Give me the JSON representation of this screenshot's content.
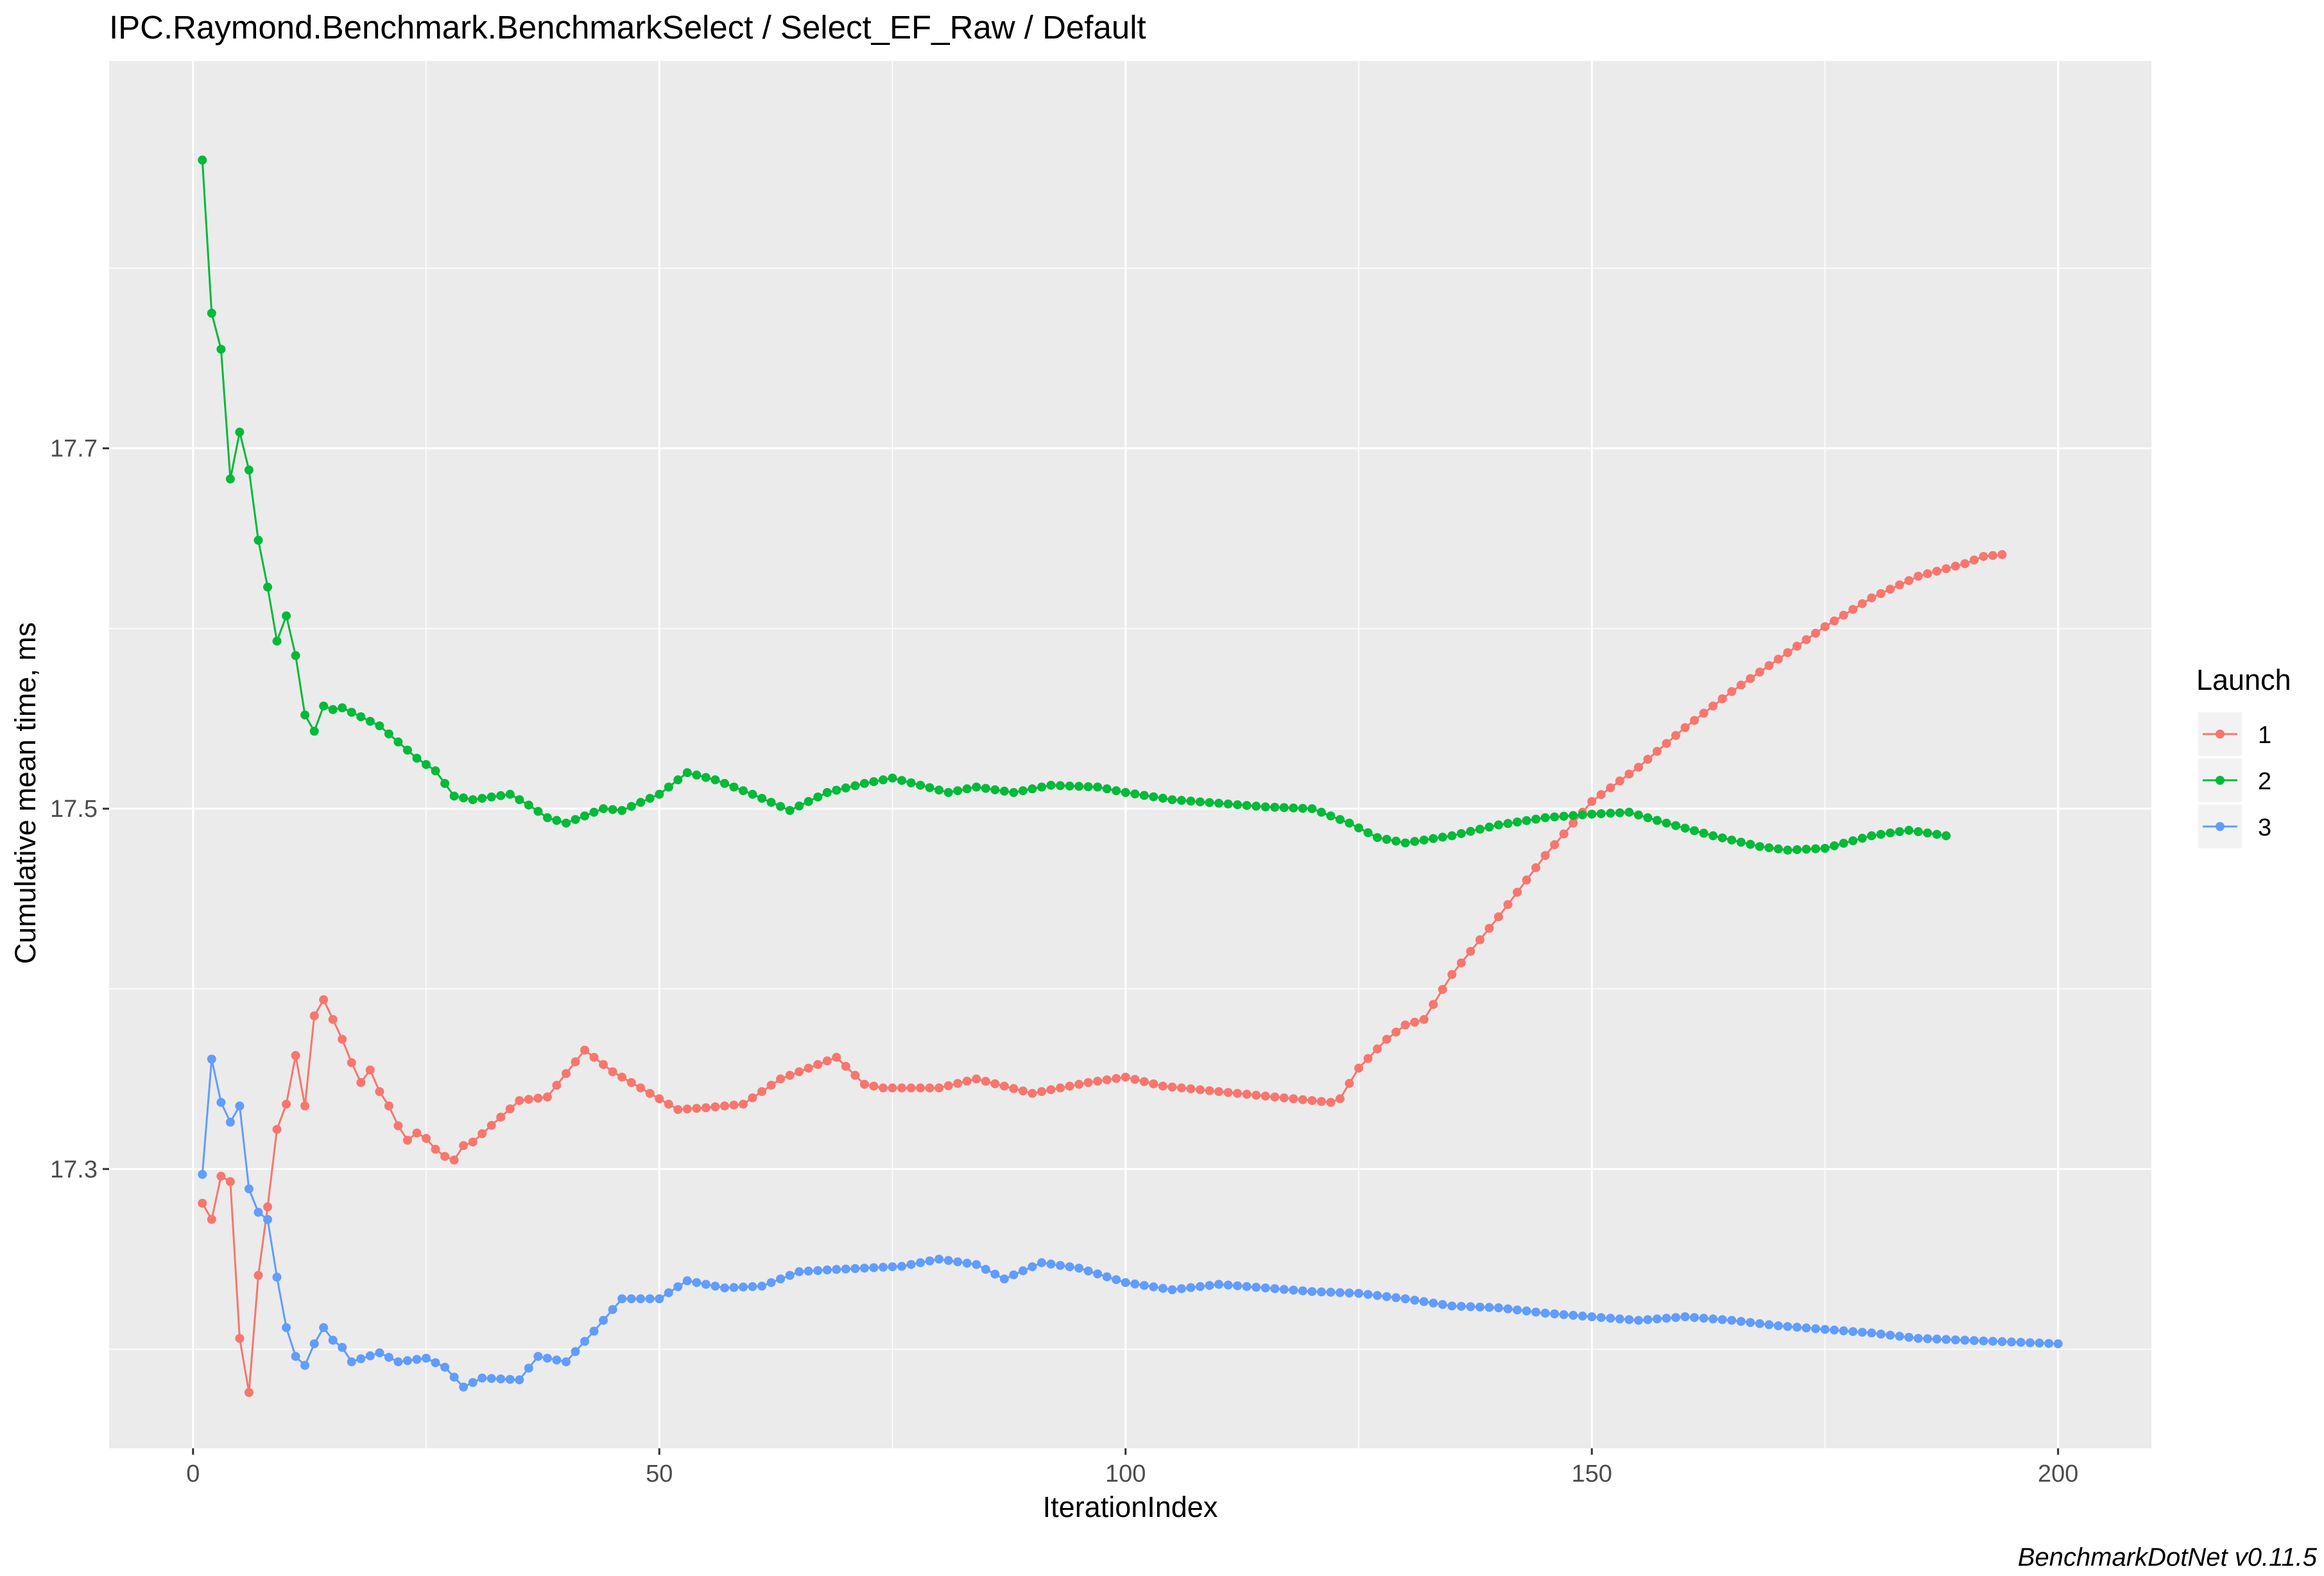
{
  "chart_data": {
    "type": "line",
    "title": "IPC.Raymond.Benchmark.BenchmarkSelect / Select_EF_Raw / Default",
    "xlabel": "IterationIndex",
    "ylabel": "Cumulative mean time, ms",
    "caption": "BenchmarkDotNet v0.11.5",
    "xlim": [
      -9,
      210
    ],
    "ylim": [
      17.145,
      17.915
    ],
    "x_ticks": [
      0,
      50,
      100,
      150,
      200
    ],
    "x_tick_labels": [
      "0",
      "50",
      "100",
      "150",
      "200"
    ],
    "y_ticks": [
      17.3,
      17.5,
      17.7
    ],
    "y_tick_labels": [
      "17.3",
      "17.5",
      "17.7"
    ],
    "grid": true,
    "legend": {
      "title": "Launch",
      "placement": "right"
    },
    "series": [
      {
        "name": "1",
        "color": "#F8766D",
        "keypoints": [
          [
            1,
            17.281
          ],
          [
            2,
            17.272
          ],
          [
            3,
            17.296
          ],
          [
            4,
            17.293
          ],
          [
            5,
            17.206
          ],
          [
            6,
            17.176
          ],
          [
            7,
            17.241
          ],
          [
            8,
            17.279
          ],
          [
            9,
            17.322
          ],
          [
            10,
            17.336
          ],
          [
            11,
            17.363
          ],
          [
            12,
            17.335
          ],
          [
            13,
            17.385
          ],
          [
            14,
            17.394
          ],
          [
            15,
            17.383
          ],
          [
            16,
            17.372
          ],
          [
            17,
            17.359
          ],
          [
            18,
            17.348
          ],
          [
            19,
            17.355
          ],
          [
            20,
            17.343
          ],
          [
            21,
            17.335
          ],
          [
            22,
            17.324
          ],
          [
            23,
            17.316
          ],
          [
            24,
            17.32
          ],
          [
            25,
            17.317
          ],
          [
            26,
            17.311
          ],
          [
            27,
            17.307
          ],
          [
            28,
            17.305
          ],
          [
            29,
            17.313
          ],
          [
            30,
            17.315
          ],
          [
            35,
            17.338
          ],
          [
            38,
            17.34
          ],
          [
            42,
            17.366
          ],
          [
            45,
            17.354
          ],
          [
            48,
            17.345
          ],
          [
            52,
            17.333
          ],
          [
            55,
            17.334
          ],
          [
            59,
            17.336
          ],
          [
            63,
            17.35
          ],
          [
            67,
            17.358
          ],
          [
            69,
            17.362
          ],
          [
            72,
            17.347
          ],
          [
            74,
            17.345
          ],
          [
            80,
            17.345
          ],
          [
            84,
            17.35
          ],
          [
            90,
            17.342
          ],
          [
            96,
            17.348
          ],
          [
            100,
            17.351
          ],
          [
            104,
            17.346
          ],
          [
            110,
            17.343
          ],
          [
            114,
            17.341
          ],
          [
            118,
            17.339
          ],
          [
            122,
            17.337
          ],
          [
            123,
            17.339
          ],
          [
            125,
            17.356
          ],
          [
            128,
            17.372
          ],
          [
            130,
            17.38
          ],
          [
            132,
            17.383
          ],
          [
            135,
            17.408
          ],
          [
            140,
            17.44
          ],
          [
            145,
            17.474
          ],
          [
            150,
            17.504
          ],
          [
            155,
            17.523
          ],
          [
            160,
            17.545
          ],
          [
            165,
            17.565
          ],
          [
            170,
            17.583
          ],
          [
            175,
            17.601
          ],
          [
            180,
            17.617
          ],
          [
            185,
            17.629
          ],
          [
            190,
            17.636
          ],
          [
            192,
            17.64
          ],
          [
            194,
            17.641
          ]
        ]
      },
      {
        "name": "2",
        "color": "#00BA38",
        "keypoints": [
          [
            1,
            17.86
          ],
          [
            2,
            17.775
          ],
          [
            3,
            17.755
          ],
          [
            4,
            17.683
          ],
          [
            5,
            17.709
          ],
          [
            6,
            17.688
          ],
          [
            7,
            17.649
          ],
          [
            8,
            17.623
          ],
          [
            9,
            17.593
          ],
          [
            10,
            17.607
          ],
          [
            11,
            17.585
          ],
          [
            12,
            17.552
          ],
          [
            13,
            17.543
          ],
          [
            14,
            17.557
          ],
          [
            15,
            17.555
          ],
          [
            16,
            17.556
          ],
          [
            18,
            17.551
          ],
          [
            20,
            17.546
          ],
          [
            22,
            17.537
          ],
          [
            24,
            17.528
          ],
          [
            26,
            17.521
          ],
          [
            28,
            17.507
          ],
          [
            30,
            17.505
          ],
          [
            34,
            17.508
          ],
          [
            36,
            17.502
          ],
          [
            38,
            17.495
          ],
          [
            40,
            17.492
          ],
          [
            44,
            17.5
          ],
          [
            46,
            17.499
          ],
          [
            50,
            17.508
          ],
          [
            53,
            17.52
          ],
          [
            56,
            17.516
          ],
          [
            60,
            17.508
          ],
          [
            64,
            17.499
          ],
          [
            68,
            17.509
          ],
          [
            72,
            17.514
          ],
          [
            75,
            17.517
          ],
          [
            78,
            17.513
          ],
          [
            81,
            17.509
          ],
          [
            84,
            17.512
          ],
          [
            88,
            17.509
          ],
          [
            92,
            17.513
          ],
          [
            97,
            17.512
          ],
          [
            100,
            17.509
          ],
          [
            105,
            17.505
          ],
          [
            110,
            17.503
          ],
          [
            115,
            17.501
          ],
          [
            120,
            17.5
          ],
          [
            124,
            17.492
          ],
          [
            127,
            17.484
          ],
          [
            130,
            17.481
          ],
          [
            135,
            17.485
          ],
          [
            140,
            17.491
          ],
          [
            145,
            17.495
          ],
          [
            150,
            17.497
          ],
          [
            154,
            17.498
          ],
          [
            158,
            17.492
          ],
          [
            163,
            17.485
          ],
          [
            168,
            17.479
          ],
          [
            171,
            17.477
          ],
          [
            175,
            17.478
          ],
          [
            180,
            17.485
          ],
          [
            184,
            17.488
          ],
          [
            188,
            17.485
          ]
        ]
      },
      {
        "name": "3",
        "color": "#619CFF",
        "keypoints": [
          [
            1,
            17.297
          ],
          [
            2,
            17.361
          ],
          [
            3,
            17.337
          ],
          [
            4,
            17.326
          ],
          [
            5,
            17.335
          ],
          [
            6,
            17.289
          ],
          [
            7,
            17.276
          ],
          [
            8,
            17.272
          ],
          [
            9,
            17.24
          ],
          [
            10,
            17.212
          ],
          [
            11,
            17.196
          ],
          [
            12,
            17.191
          ],
          [
            13,
            17.203
          ],
          [
            14,
            17.212
          ],
          [
            15,
            17.205
          ],
          [
            16,
            17.201
          ],
          [
            17,
            17.193
          ],
          [
            20,
            17.198
          ],
          [
            22,
            17.193
          ],
          [
            25,
            17.195
          ],
          [
            27,
            17.19
          ],
          [
            29,
            17.179
          ],
          [
            31,
            17.184
          ],
          [
            35,
            17.183
          ],
          [
            37,
            17.196
          ],
          [
            40,
            17.193
          ],
          [
            43,
            17.21
          ],
          [
            46,
            17.228
          ],
          [
            50,
            17.228
          ],
          [
            53,
            17.238
          ],
          [
            57,
            17.234
          ],
          [
            61,
            17.235
          ],
          [
            65,
            17.243
          ],
          [
            68,
            17.244
          ],
          [
            72,
            17.245
          ],
          [
            76,
            17.246
          ],
          [
            80,
            17.25
          ],
          [
            84,
            17.247
          ],
          [
            87,
            17.239
          ],
          [
            91,
            17.248
          ],
          [
            95,
            17.245
          ],
          [
            100,
            17.237
          ],
          [
            105,
            17.233
          ],
          [
            110,
            17.236
          ],
          [
            115,
            17.234
          ],
          [
            120,
            17.232
          ],
          [
            125,
            17.231
          ],
          [
            130,
            17.228
          ],
          [
            135,
            17.224
          ],
          [
            140,
            17.223
          ],
          [
            145,
            17.22
          ],
          [
            150,
            17.218
          ],
          [
            155,
            17.216
          ],
          [
            160,
            17.218
          ],
          [
            165,
            17.216
          ],
          [
            170,
            17.213
          ],
          [
            175,
            17.211
          ],
          [
            180,
            17.209
          ],
          [
            185,
            17.206
          ],
          [
            190,
            17.205
          ],
          [
            195,
            17.204
          ],
          [
            200,
            17.203
          ]
        ]
      }
    ]
  }
}
